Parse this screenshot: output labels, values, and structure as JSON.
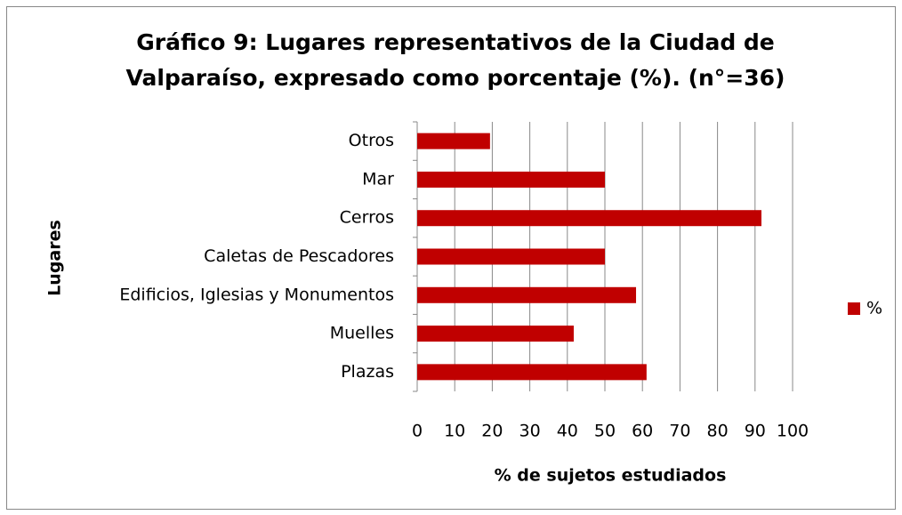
{
  "chart_data": {
    "type": "bar",
    "orientation": "horizontal",
    "title": [
      "Gráfico 9: Lugares representativos de la Ciudad  de",
      "Valparaíso, expresado como porcentaje (%). (n°=36)"
    ],
    "x_label": "% de sujetos estudiados",
    "y_label": "Lugares",
    "categories": [
      "Otros",
      "Mar",
      "Cerros",
      "Caletas de Pescadores",
      "Edificios, Iglesias y Monumentos",
      "Muelles",
      "Plazas"
    ],
    "series": [
      {
        "name": "%",
        "color": "#c00000",
        "values": [
          19.4,
          50,
          91.7,
          50,
          58.3,
          41.7,
          61.1
        ]
      }
    ],
    "xlim": [
      0,
      100
    ],
    "xticks": [
      0,
      10,
      20,
      30,
      40,
      50,
      60,
      70,
      80,
      90,
      100
    ],
    "grid": true,
    "legend": "right"
  }
}
